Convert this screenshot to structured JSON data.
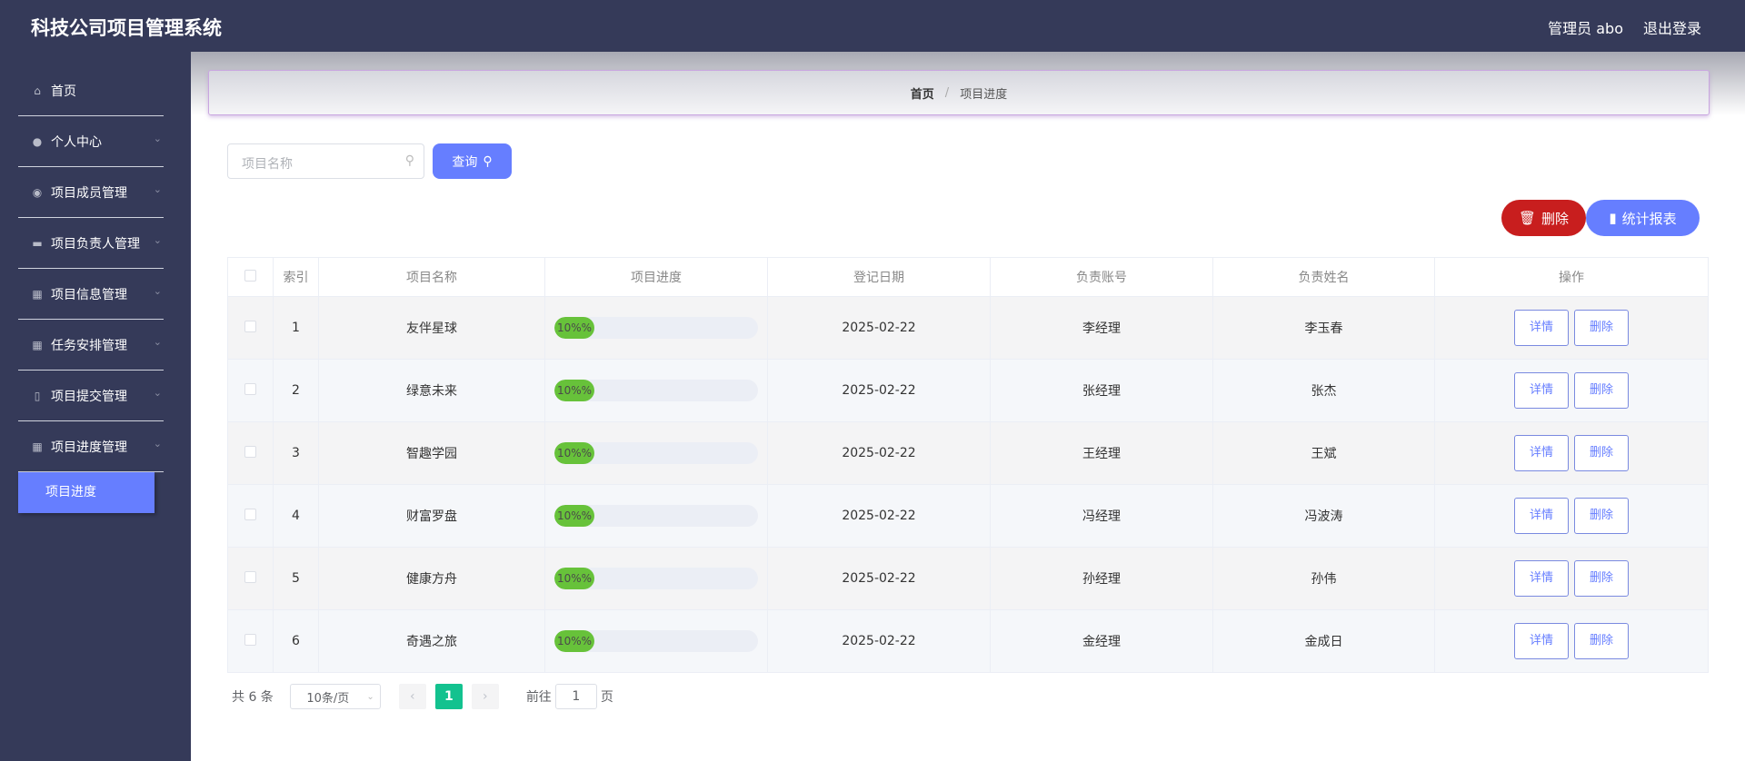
{
  "header": {
    "title": "科技公司项目管理系统",
    "user": "管理员 abo",
    "logout": "退出登录"
  },
  "sidebar": {
    "items": [
      {
        "label": "首页",
        "icon": "home-icon"
      },
      {
        "label": "个人中心",
        "icon": "user-icon"
      },
      {
        "label": "项目成员管理",
        "icon": "pin-icon"
      },
      {
        "label": "项目负责人管理",
        "icon": "briefcase-icon"
      },
      {
        "label": "项目信息管理",
        "icon": "grid-icon"
      },
      {
        "label": "任务安排管理",
        "icon": "grid-icon"
      },
      {
        "label": "项目提交管理",
        "icon": "clipboard-icon"
      },
      {
        "label": "项目进度管理",
        "icon": "grid-icon"
      }
    ],
    "active": "项目进度"
  },
  "breadcrumb": {
    "home": "首页",
    "sep": "/",
    "current": "项目进度"
  },
  "search": {
    "placeholder": "项目名称",
    "button": "查询"
  },
  "actions": {
    "delete": "删除",
    "stats": "统计报表"
  },
  "table": {
    "headers": [
      "索引",
      "项目名称",
      "项目进度",
      "登记日期",
      "负责账号",
      "负责姓名",
      "操作"
    ],
    "rows": [
      {
        "idx": "1",
        "name": "友伴星球",
        "progress": 10,
        "progress_label": "10%%",
        "date": "2025-02-22",
        "account": "李经理",
        "person": "李玉春"
      },
      {
        "idx": "2",
        "name": "绿意未来",
        "progress": 10,
        "progress_label": "10%%",
        "date": "2025-02-22",
        "account": "张经理",
        "person": "张杰"
      },
      {
        "idx": "3",
        "name": "智趣学园",
        "progress": 10,
        "progress_label": "10%%",
        "date": "2025-02-22",
        "account": "王经理",
        "person": "王斌"
      },
      {
        "idx": "4",
        "name": "财富罗盘",
        "progress": 10,
        "progress_label": "10%%",
        "date": "2025-02-22",
        "account": "冯经理",
        "person": "冯波涛"
      },
      {
        "idx": "5",
        "name": "健康方舟",
        "progress": 10,
        "progress_label": "10%%",
        "date": "2025-02-22",
        "account": "孙经理",
        "person": "孙伟"
      },
      {
        "idx": "6",
        "name": "奇遇之旅",
        "progress": 10,
        "progress_label": "10%%",
        "date": "2025-02-22",
        "account": "金经理",
        "person": "金成日"
      }
    ],
    "detail_label": "详情",
    "delete_label": "删除"
  },
  "pagination": {
    "total": "共 6 条",
    "page_size": "10条/页",
    "current": "1",
    "goto_prefix": "前往",
    "goto_value": "1",
    "goto_suffix": "页"
  },
  "colors": {
    "header": "#353a59",
    "accent": "#667eff",
    "danger": "#c81e1e",
    "progress": "#67c23a",
    "page_active": "#13c28f"
  }
}
